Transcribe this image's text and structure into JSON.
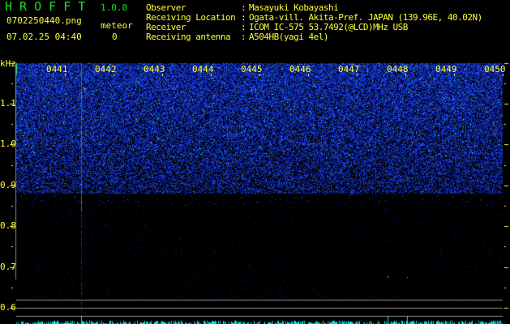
{
  "header": {
    "app_title": "H R O F F T",
    "version": "1.0.0",
    "filename": "0702250440.png",
    "datetime": "07.02.25 04:40",
    "meteor_label": "meteor",
    "meteor_count": "0"
  },
  "info": [
    {
      "label": "Observer",
      "value": "Masayuki Kobayashi"
    },
    {
      "label": "Receiving Location",
      "value": "Ogata-vill. Akita-Pref. JAPAN (139.96E, 40.02N)"
    },
    {
      "label": "Receiver",
      "value": "ICOM IC-575 53.7492(@LCD)MHz USB"
    },
    {
      "label": "Receiving antenna",
      "value": "A504HB(yagi 4el)"
    }
  ],
  "spectrogram": {
    "y_unit": "kHz",
    "y_ticks": [
      "1.1",
      "1.0",
      "0.9",
      "0.8",
      "0.7",
      "0.6"
    ],
    "x_ticks": [
      "0441",
      "0442",
      "0443",
      "0444",
      "0445",
      "0446",
      "0447",
      "0448",
      "0449",
      "0450"
    ],
    "colors": {
      "text": "#ffff33",
      "title": "#22dd22",
      "noise": "#1030d0",
      "histogram": "#00e5ee",
      "guide_lines": "#909090"
    }
  }
}
